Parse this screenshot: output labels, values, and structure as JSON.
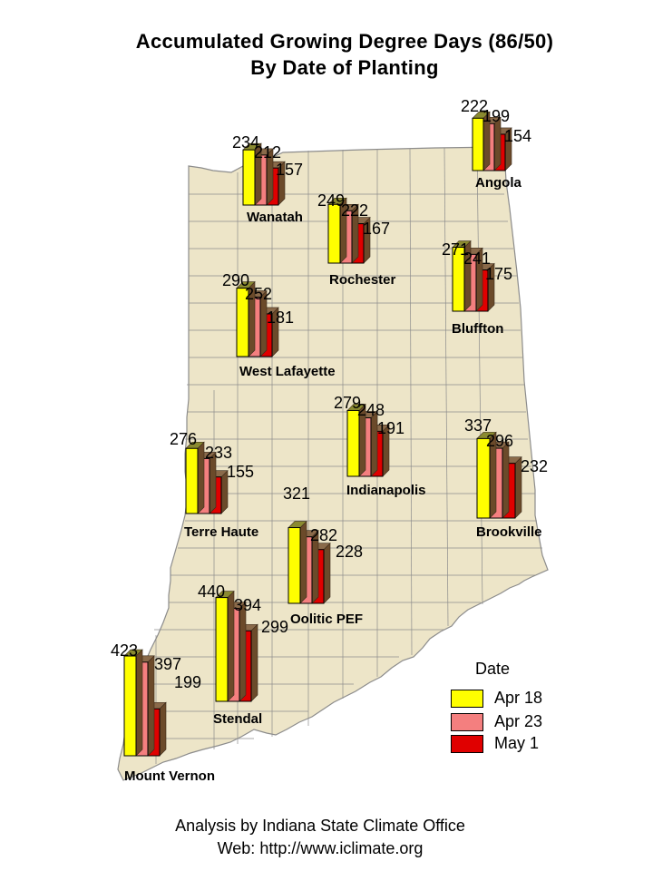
{
  "title_line1": "Accumulated Growing Degree Days (86/50)",
  "title_line2": "By Date of Planting",
  "legend": {
    "title": "Date",
    "items": [
      {
        "label": "Apr 18",
        "color": "#ffff00"
      },
      {
        "label": "Apr 23",
        "color": "#f47f7f"
      },
      {
        "label": "May 1",
        "color": "#e00000"
      }
    ]
  },
  "map_colors": {
    "fill": "#ede5c8",
    "border": "#8c8c8c"
  },
  "stations": [
    {
      "name": "Angola",
      "values": [
        222,
        199,
        154
      ]
    },
    {
      "name": "Wanatah",
      "values": [
        234,
        212,
        157
      ]
    },
    {
      "name": "Rochester",
      "values": [
        249,
        222,
        167
      ]
    },
    {
      "name": "Bluffton",
      "values": [
        271,
        241,
        175
      ]
    },
    {
      "name": "West Lafayette",
      "values": [
        290,
        252,
        181
      ]
    },
    {
      "name": "Indianapolis",
      "values": [
        279,
        248,
        191
      ]
    },
    {
      "name": "Brookville",
      "values": [
        337,
        296,
        232
      ]
    },
    {
      "name": "Terre Haute",
      "values": [
        276,
        233,
        155
      ]
    },
    {
      "name": "Oolitic PEF",
      "values": [
        321,
        282,
        228
      ]
    },
    {
      "name": "Stendal",
      "values": [
        440,
        394,
        299
      ]
    },
    {
      "name": "Mount Vernon",
      "values": [
        423,
        397,
        199
      ]
    }
  ],
  "footer_line1": "Analysis by Indiana State Climate Office",
  "footer_line2": "Web: http://www.iclimate.org"
}
